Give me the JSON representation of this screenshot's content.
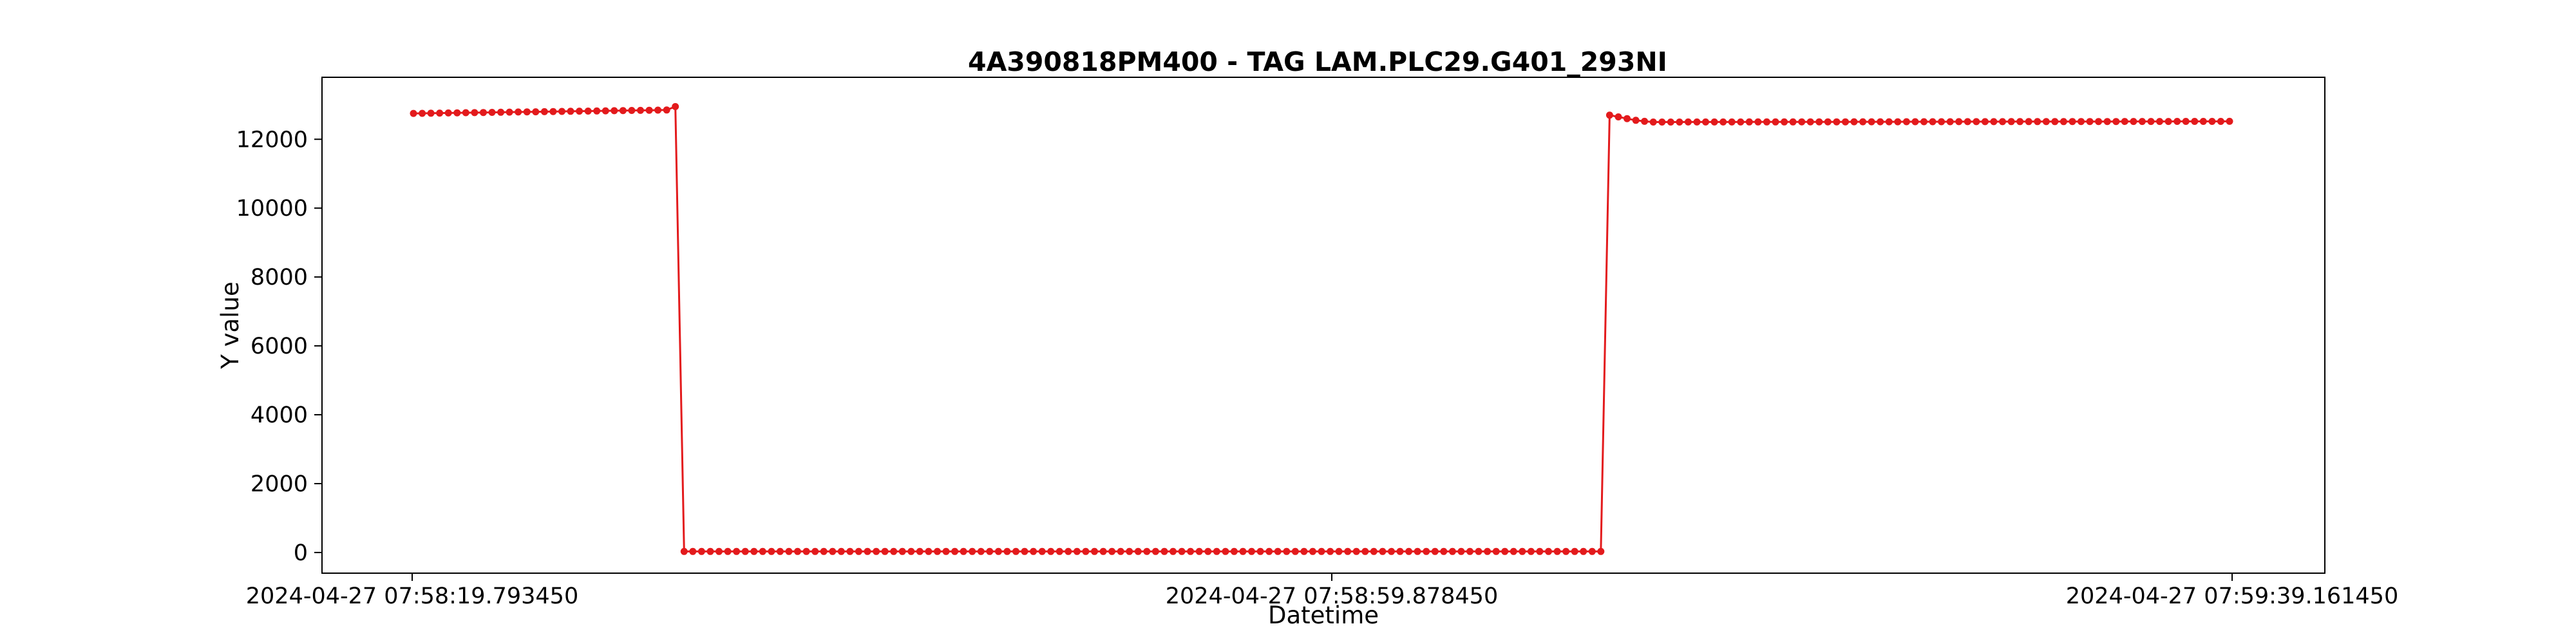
{
  "chart_data": {
    "type": "line",
    "title": "4A390818PM400 - TAG LAM.PLC29.G401_293NI",
    "xlabel": "Datetime",
    "ylabel": "Y value",
    "ylim": [
      -600,
      13800
    ],
    "yticks": [
      0,
      2000,
      4000,
      6000,
      8000,
      10000,
      12000
    ],
    "xticks": [
      "2024-04-27 07:58:19.793450",
      "2024-04-27 07:58:59.878450",
      "2024-04-27 07:59:39.161450"
    ],
    "grid": false,
    "colors": {
      "series": "#e31a1c",
      "axes": "#000000"
    },
    "series": [
      {
        "marker": "circle",
        "segments": [
          {
            "count": 31,
            "start": 12750,
            "end": 12850,
            "last": 12950
          },
          {
            "count": 106,
            "start": 30,
            "end": 30
          },
          {
            "count": 5,
            "values": [
              12700,
              12650,
              12600,
              12550,
              12520
            ]
          },
          {
            "count": 67,
            "start": 12500,
            "end": 12520
          }
        ]
      }
    ]
  }
}
